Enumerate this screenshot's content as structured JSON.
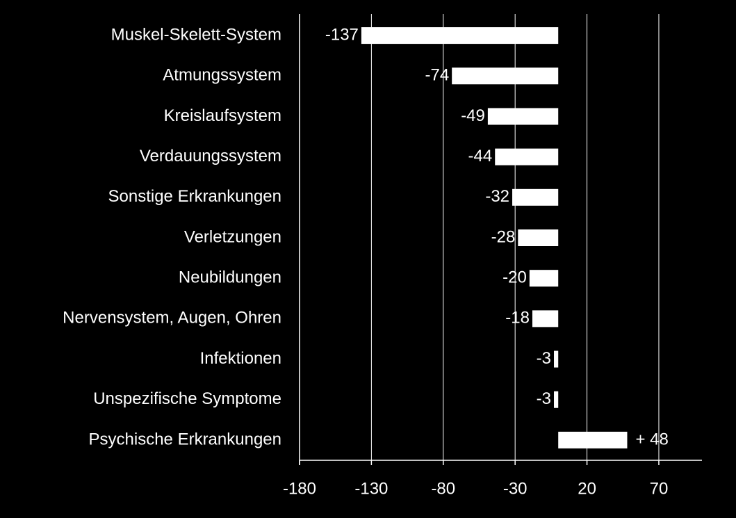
{
  "chart_data": {
    "type": "bar",
    "orientation": "horizontal",
    "categories": [
      "Muskel-Skelett-System",
      "Atmungssystem",
      "Kreislaufsystem",
      "Verdauungssystem",
      "Sonstige Erkrankungen",
      "Verletzungen",
      "Neubildungen",
      "Nervensystem, Augen, Ohren",
      "Infektionen",
      "Unspezifische Symptome",
      "Psychische Erkrankungen"
    ],
    "values": [
      -137,
      -74,
      -49,
      -44,
      -32,
      -28,
      -20,
      -18,
      -3,
      -3,
      48
    ],
    "value_labels": [
      "-137",
      "-74",
      "-49",
      "-44",
      "-32",
      "-28",
      "-20",
      "-18",
      "-3",
      "-3",
      "+ 48"
    ],
    "color": "#ffffff",
    "xlim": [
      -180,
      100
    ],
    "xticks": [
      -180,
      -130,
      -80,
      -30,
      20,
      70
    ],
    "grid": true
  }
}
